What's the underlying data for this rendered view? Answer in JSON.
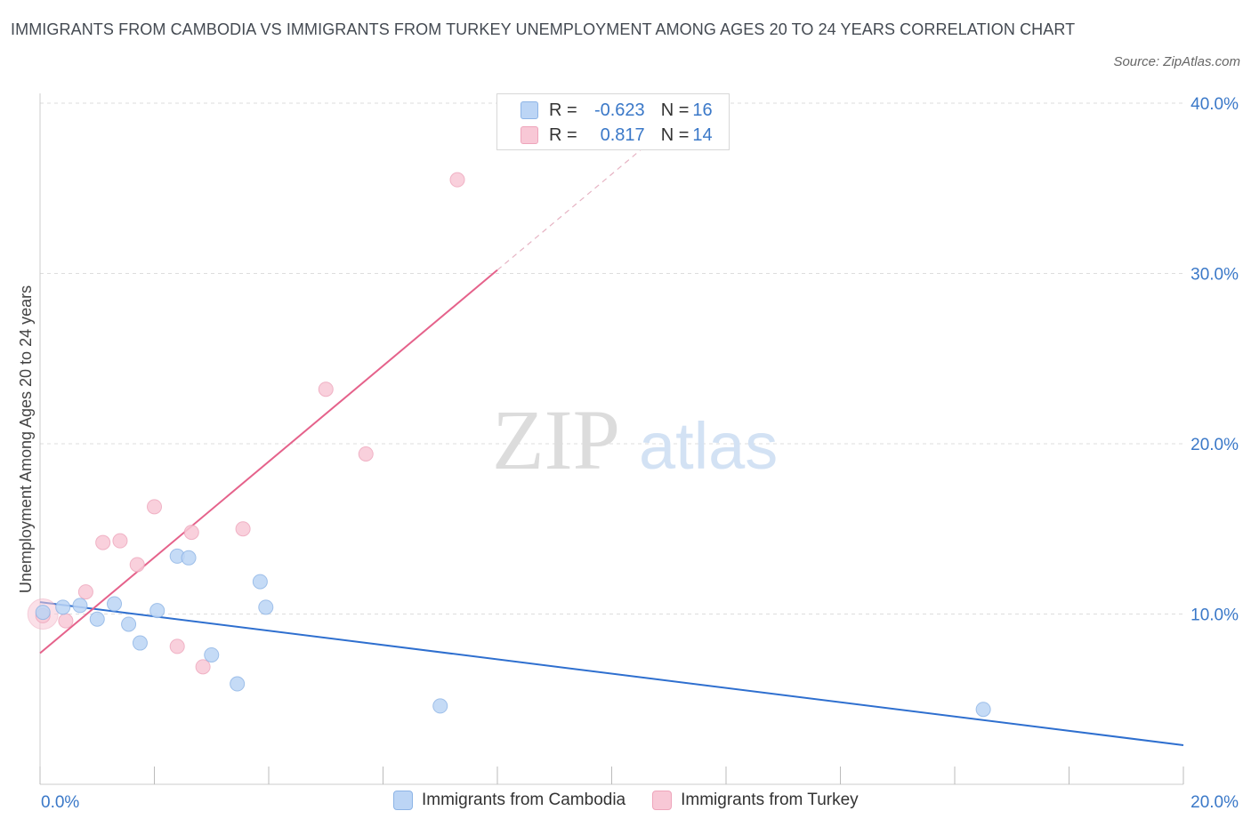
{
  "header": {
    "title": "IMMIGRANTS FROM CAMBODIA VS IMMIGRANTS FROM TURKEY UNEMPLOYMENT AMONG AGES 20 TO 24 YEARS CORRELATION CHART",
    "source": "Source: ZipAtlas.com"
  },
  "watermark": {
    "zip": "ZIP",
    "atlas": "atlas"
  },
  "colors": {
    "cambodia_fill": "#bcd5f5",
    "cambodia_stroke": "#8db4e6",
    "cambodia_line": "#2e6fcf",
    "turkey_fill": "#f8c8d6",
    "turkey_stroke": "#eea5bb",
    "turkey_line": "#e5628b",
    "axis_label": "#3a78c8",
    "grid": "#dddddd"
  },
  "legend": {
    "rows": [
      {
        "r_label": "R =",
        "r_value": "-0.623",
        "n_label": "N =",
        "n_value": "16"
      },
      {
        "r_label": "R =",
        "r_value": "0.817",
        "n_label": "N =",
        "n_value": "14"
      }
    ],
    "series": [
      "Immigrants from Cambodia",
      "Immigrants from Turkey"
    ]
  },
  "chart_data": {
    "type": "scatter",
    "title": "IMMIGRANTS FROM CAMBODIA VS IMMIGRANTS FROM TURKEY UNEMPLOYMENT AMONG AGES 20 TO 24 YEARS CORRELATION CHART",
    "xlabel": "",
    "ylabel": "Unemployment Among Ages 20 to 24 years",
    "xlim": [
      0,
      20
    ],
    "ylim": [
      0,
      40
    ],
    "x_tick_labels": [
      "0.0%",
      "20.0%"
    ],
    "y_tick_labels": [
      "10.0%",
      "20.0%",
      "30.0%",
      "40.0%"
    ],
    "y_tick_values": [
      10,
      20,
      30,
      40
    ],
    "grid": true,
    "legend_position": "top-center",
    "series": [
      {
        "name": "Immigrants from Cambodia",
        "r": -0.623,
        "n": 16,
        "points": [
          {
            "x": 0.05,
            "y": 10.1
          },
          {
            "x": 0.4,
            "y": 10.4
          },
          {
            "x": 0.7,
            "y": 10.5
          },
          {
            "x": 1.0,
            "y": 9.7
          },
          {
            "x": 1.3,
            "y": 10.6
          },
          {
            "x": 1.55,
            "y": 9.4
          },
          {
            "x": 1.75,
            "y": 8.3
          },
          {
            "x": 2.05,
            "y": 10.2
          },
          {
            "x": 2.4,
            "y": 13.4
          },
          {
            "x": 2.6,
            "y": 13.3
          },
          {
            "x": 3.0,
            "y": 7.6
          },
          {
            "x": 3.45,
            "y": 5.9
          },
          {
            "x": 3.85,
            "y": 11.9
          },
          {
            "x": 3.95,
            "y": 10.4
          },
          {
            "x": 7.0,
            "y": 4.6
          },
          {
            "x": 16.5,
            "y": 4.4
          }
        ],
        "trend": {
          "x": [
            0,
            20
          ],
          "y": [
            10.7,
            2.3
          ]
        }
      },
      {
        "name": "Immigrants from Turkey",
        "r": 0.817,
        "n": 14,
        "points": [
          {
            "x": 0.05,
            "y": 9.9
          },
          {
            "x": 0.45,
            "y": 9.6
          },
          {
            "x": 0.8,
            "y": 11.3
          },
          {
            "x": 1.1,
            "y": 14.2
          },
          {
            "x": 1.4,
            "y": 14.3
          },
          {
            "x": 1.7,
            "y": 12.9
          },
          {
            "x": 2.0,
            "y": 16.3
          },
          {
            "x": 2.4,
            "y": 8.1
          },
          {
            "x": 2.65,
            "y": 14.8
          },
          {
            "x": 2.85,
            "y": 6.9
          },
          {
            "x": 3.55,
            "y": 15.0
          },
          {
            "x": 5.0,
            "y": 23.2
          },
          {
            "x": 5.7,
            "y": 19.4
          },
          {
            "x": 7.3,
            "y": 35.5
          }
        ],
        "trend": {
          "x": [
            0,
            8.0
          ],
          "y": [
            7.7,
            30.2
          ]
        },
        "trend_dashed": {
          "x": [
            8.0,
            10.7
          ],
          "y": [
            30.2,
            37.8
          ]
        }
      }
    ]
  }
}
